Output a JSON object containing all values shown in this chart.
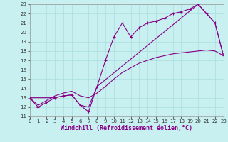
{
  "xlabel": "Windchill (Refroidissement éolien,°C)",
  "bg_color": "#c8f0f0",
  "line_color": "#880088",
  "grid_color": "#aadddd",
  "xlim": [
    0,
    23
  ],
  "ylim": [
    11,
    23
  ],
  "xticks": [
    0,
    1,
    2,
    3,
    4,
    5,
    6,
    7,
    8,
    9,
    10,
    11,
    12,
    13,
    14,
    15,
    16,
    17,
    18,
    19,
    20,
    21,
    22,
    23
  ],
  "yticks": [
    11,
    12,
    13,
    14,
    15,
    16,
    17,
    18,
    19,
    20,
    21,
    22,
    23
  ],
  "line1_x": [
    0,
    1,
    2,
    3,
    4,
    5,
    6,
    7,
    8,
    9,
    10,
    11,
    12,
    13,
    14,
    15,
    16,
    17,
    18,
    19,
    20,
    21,
    22,
    23
  ],
  "line1_y": [
    13,
    12,
    12.5,
    13,
    13.2,
    13.3,
    12.2,
    11.5,
    14.2,
    17,
    19.5,
    21,
    19.5,
    20.5,
    21,
    21.2,
    21.5,
    22,
    22.2,
    22.5,
    23,
    22,
    21,
    17.5
  ],
  "line2_x": [
    0,
    3,
    4,
    5,
    6,
    7,
    8,
    20,
    21,
    22,
    23
  ],
  "line2_y": [
    13,
    13,
    13.2,
    13.3,
    12.2,
    12,
    14.2,
    23,
    22,
    21,
    17.5
  ],
  "line3_x": [
    0,
    1,
    2,
    3,
    4,
    5,
    6,
    7,
    8,
    9,
    10,
    11,
    12,
    13,
    14,
    15,
    16,
    17,
    18,
    19,
    20,
    21,
    22,
    23
  ],
  "line3_y": [
    13,
    12.2,
    12.7,
    13.2,
    13.5,
    13.7,
    13.2,
    13.0,
    13.5,
    14.2,
    15.0,
    15.7,
    16.2,
    16.7,
    17.0,
    17.3,
    17.5,
    17.7,
    17.8,
    17.9,
    18.0,
    18.1,
    18.0,
    17.5
  ],
  "figsize": [
    3.2,
    2.0
  ],
  "dpi": 100,
  "xlabel_fontsize": 6,
  "tick_fontsize": 5
}
